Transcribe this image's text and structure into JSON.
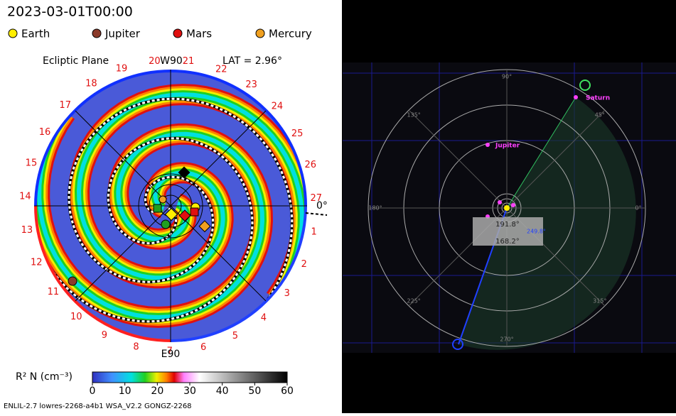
{
  "left_panel": {
    "timestamp": "2023-03-01T00:00",
    "legend": [
      {
        "label": "Earth",
        "color": "#ffee00"
      },
      {
        "label": "Jupiter",
        "color": "#8b3a2a"
      },
      {
        "label": "Mars",
        "color": "#e01010"
      },
      {
        "label": "Mercury",
        "color": "#f0a020"
      }
    ],
    "plane_label": "Ecliptic Plane",
    "top_label": "W90",
    "lat_label": "LAT = 2.96°",
    "bottom_label": "E90",
    "right_label": "0°",
    "sectors": [
      "1",
      "2",
      "3",
      "4",
      "5",
      "6",
      "7",
      "8",
      "9",
      "10",
      "11",
      "12",
      "13",
      "14",
      "15",
      "16",
      "17",
      "18",
      "19",
      "20",
      "21",
      "22",
      "23",
      "24",
      "25",
      "26",
      "27"
    ],
    "colorbar": {
      "label": "R² N (cm⁻³)",
      "lim": [
        0,
        60
      ],
      "ticks": [
        0,
        10,
        20,
        30,
        40,
        50,
        60
      ]
    },
    "footer": "ENLIL-2.7 lowres-2268-a4b1 WSA_V2.2 GONGZ-2268"
  },
  "right_panel": {
    "angle_labels": [
      "0°",
      "45°",
      "90°",
      "135°",
      "180°",
      "225°",
      "270°",
      "315°"
    ],
    "planets": [
      "Jupiter",
      "Saturn"
    ],
    "readout": [
      "191.8°",
      "249.8°",
      "168.2°"
    ]
  }
}
